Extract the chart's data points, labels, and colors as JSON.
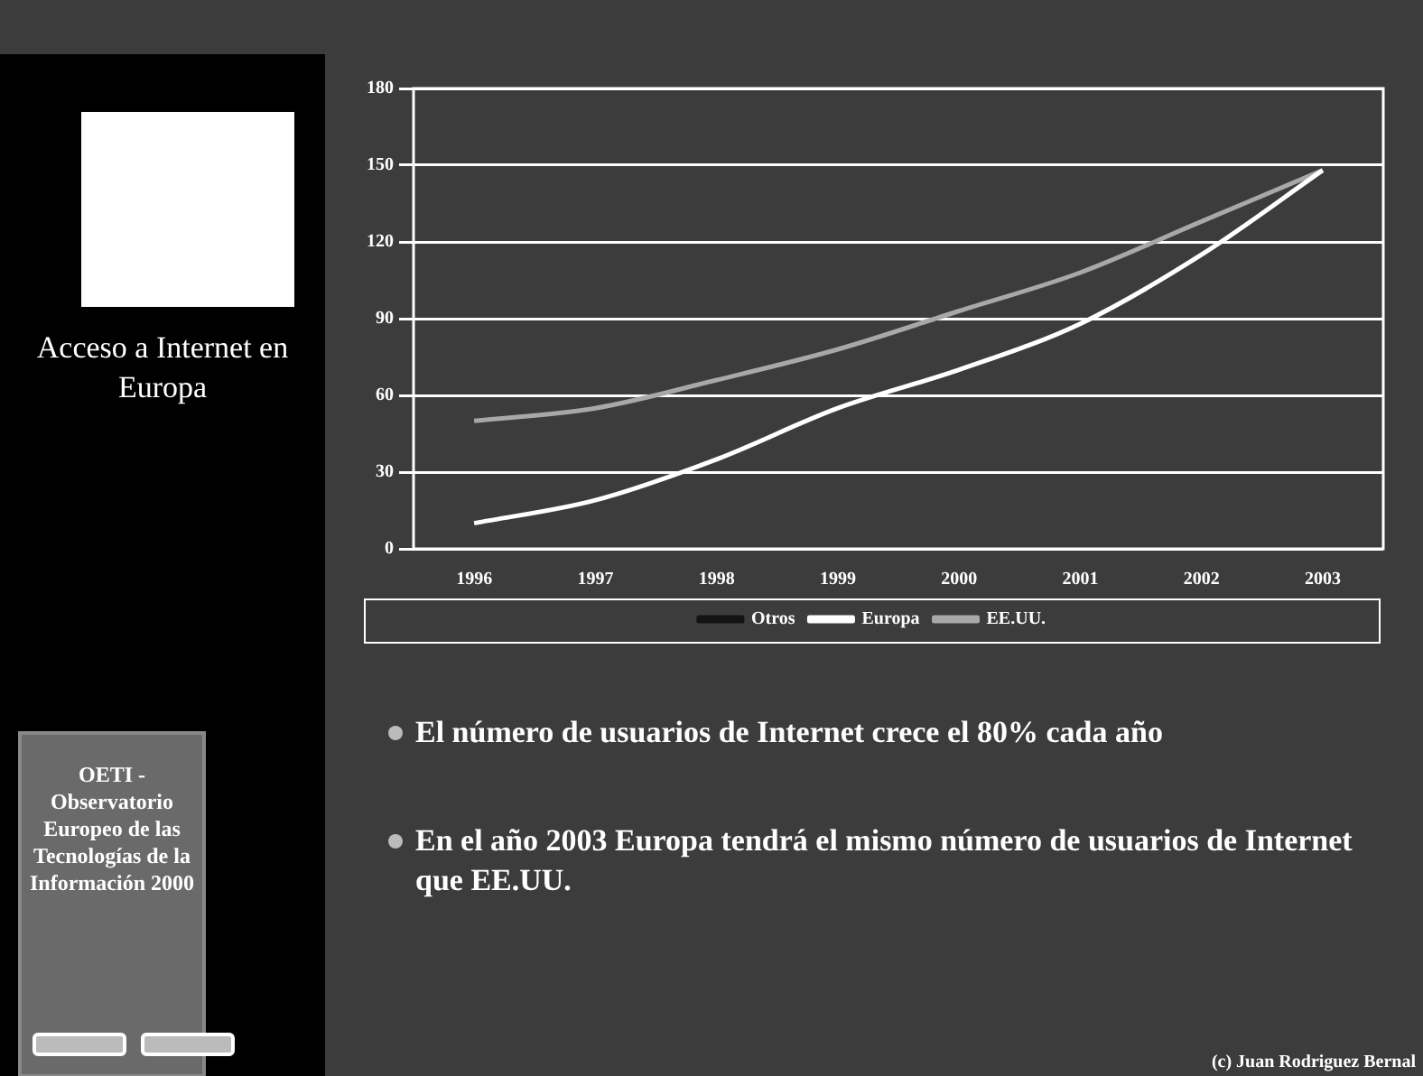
{
  "chart_data": {
    "type": "line",
    "title": "Acceso a Internet en Europa",
    "subtitle": "OETI - Observatorio Europeo de las Tecnologías de la Información 2000",
    "categories": [
      "1996",
      "1997",
      "1998",
      "1999",
      "2000",
      "2001",
      "2002",
      "2003"
    ],
    "series": [
      {
        "name": "Otros",
        "color": "#141414",
        "values": [
          null,
          null,
          null,
          null,
          null,
          null,
          null,
          null
        ]
      },
      {
        "name": "Europa",
        "color": "#ffffff",
        "values": [
          10,
          19,
          35,
          55,
          70,
          88,
          115,
          148
        ]
      },
      {
        "name": "EE.UU.",
        "color": "#a8a8a8",
        "values": [
          50,
          55,
          66,
          78,
          93,
          108,
          128,
          148
        ]
      }
    ],
    "ylim": [
      0,
      180
    ],
    "yticks": [
      0,
      30,
      60,
      90,
      120,
      150,
      180
    ],
    "grid": "y",
    "legend": "bottom",
    "marker": "none",
    "line_style": "solid",
    "annotations": [
      "El número de usuarios de Internet crece el 80% cada año",
      "En el año 2003 Europa tendrá el mismo número de usuarios de Internet que EE.UU.",
      "(c) Juan Rodriguez Bernal"
    ]
  }
}
